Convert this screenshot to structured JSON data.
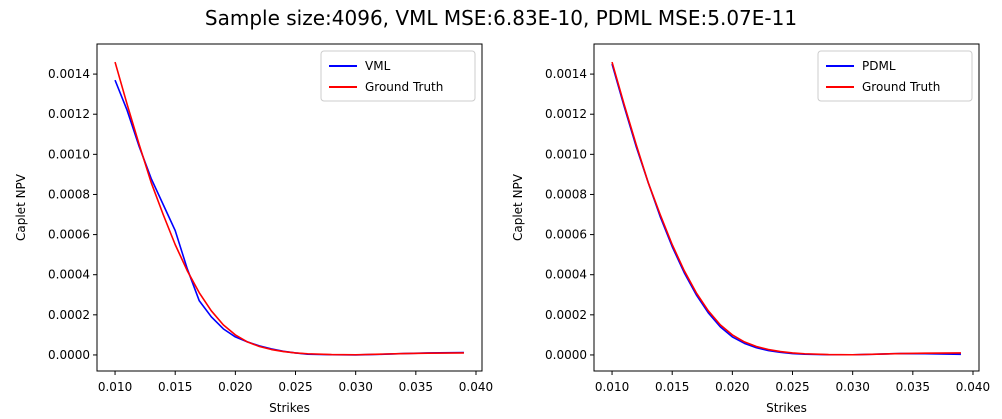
{
  "figure_title": "Sample size:4096, VML MSE:6.83E-10, PDML MSE:5.07E-11",
  "colors": {
    "model": "#0000ff",
    "ground_truth": "#ff0000",
    "axis": "#000000"
  },
  "chart_data": [
    {
      "type": "line",
      "title": "",
      "xlabel": "Strikes",
      "ylabel": "Caplet NPV",
      "xlim": [
        0.0085,
        0.0405
      ],
      "ylim": [
        -8e-05,
        0.00155
      ],
      "xticks": [
        0.01,
        0.015,
        0.02,
        0.025,
        0.03,
        0.035,
        0.04
      ],
      "xtick_labels": [
        "0.010",
        "0.015",
        "0.020",
        "0.025",
        "0.030",
        "0.035",
        "0.040"
      ],
      "yticks": [
        0.0,
        0.0002,
        0.0004,
        0.0006,
        0.0008,
        0.001,
        0.0012,
        0.0014
      ],
      "ytick_labels": [
        "0.0000",
        "0.0002",
        "0.0004",
        "0.0006",
        "0.0008",
        "0.0010",
        "0.0012",
        "0.0014"
      ],
      "legend_position": "top-right",
      "x": [
        0.01,
        0.011,
        0.012,
        0.013,
        0.014,
        0.015,
        0.016,
        0.017,
        0.018,
        0.019,
        0.02,
        0.021,
        0.022,
        0.023,
        0.024,
        0.025,
        0.026,
        0.028,
        0.03,
        0.032,
        0.034,
        0.036,
        0.039
      ],
      "series": [
        {
          "name": "VML",
          "color": "#0000ff",
          "values": [
            0.00137,
            0.00122,
            0.00104,
            0.00088,
            0.00075,
            0.00062,
            0.00043,
            0.00027,
            0.00019,
            0.00013,
            9e-05,
            6.5e-05,
            4.5e-05,
            3e-05,
            1.8e-05,
            1e-05,
            4e-06,
            1e-06,
            0.0,
            3e-06,
            7e-06,
            1e-05,
            1.2e-05
          ]
        },
        {
          "name": "Ground Truth",
          "color": "#ff0000",
          "values": [
            0.00146,
            0.00125,
            0.00105,
            0.00086,
            0.0007,
            0.00055,
            0.00042,
            0.00031,
            0.00022,
            0.00015,
            0.0001,
            6.5e-05,
            4.2e-05,
            2.7e-05,
            1.7e-05,
            1e-05,
            6e-06,
            2e-06,
            1e-06,
            4e-06,
            7e-06,
            9e-06,
            1e-05
          ]
        }
      ]
    },
    {
      "type": "line",
      "title": "",
      "xlabel": "Strikes",
      "ylabel": "Caplet NPV",
      "xlim": [
        0.0085,
        0.0405
      ],
      "ylim": [
        -8e-05,
        0.00155
      ],
      "xticks": [
        0.01,
        0.015,
        0.02,
        0.025,
        0.03,
        0.035,
        0.04
      ],
      "xtick_labels": [
        "0.010",
        "0.015",
        "0.020",
        "0.025",
        "0.030",
        "0.035",
        "0.040"
      ],
      "yticks": [
        0.0,
        0.0002,
        0.0004,
        0.0006,
        0.0008,
        0.001,
        0.0012,
        0.0014
      ],
      "ytick_labels": [
        "0.0000",
        "0.0002",
        "0.0004",
        "0.0006",
        "0.0008",
        "0.0010",
        "0.0012",
        "0.0014"
      ],
      "legend_position": "top-right",
      "x": [
        0.01,
        0.011,
        0.012,
        0.013,
        0.014,
        0.015,
        0.016,
        0.017,
        0.018,
        0.019,
        0.02,
        0.021,
        0.022,
        0.023,
        0.024,
        0.025,
        0.026,
        0.028,
        0.03,
        0.032,
        0.034,
        0.036,
        0.039
      ],
      "series": [
        {
          "name": "PDML",
          "color": "#0000ff",
          "values": [
            0.00145,
            0.00124,
            0.00104,
            0.00086,
            0.00069,
            0.00054,
            0.00041,
            0.0003,
            0.00021,
            0.00014,
            9e-05,
            5.8e-05,
            3.6e-05,
            2.2e-05,
            1.3e-05,
            7e-06,
            4e-06,
            1e-06,
            1e-06,
            4e-06,
            7e-06,
            6e-06,
            3e-06
          ]
        },
        {
          "name": "Ground Truth",
          "color": "#ff0000",
          "values": [
            0.00146,
            0.00125,
            0.00105,
            0.00086,
            0.0007,
            0.00055,
            0.00042,
            0.00031,
            0.00022,
            0.00015,
            0.0001,
            6.5e-05,
            4.2e-05,
            2.7e-05,
            1.7e-05,
            1e-05,
            6e-06,
            2e-06,
            1e-06,
            4e-06,
            7e-06,
            9e-06,
            1e-05
          ]
        }
      ]
    }
  ]
}
